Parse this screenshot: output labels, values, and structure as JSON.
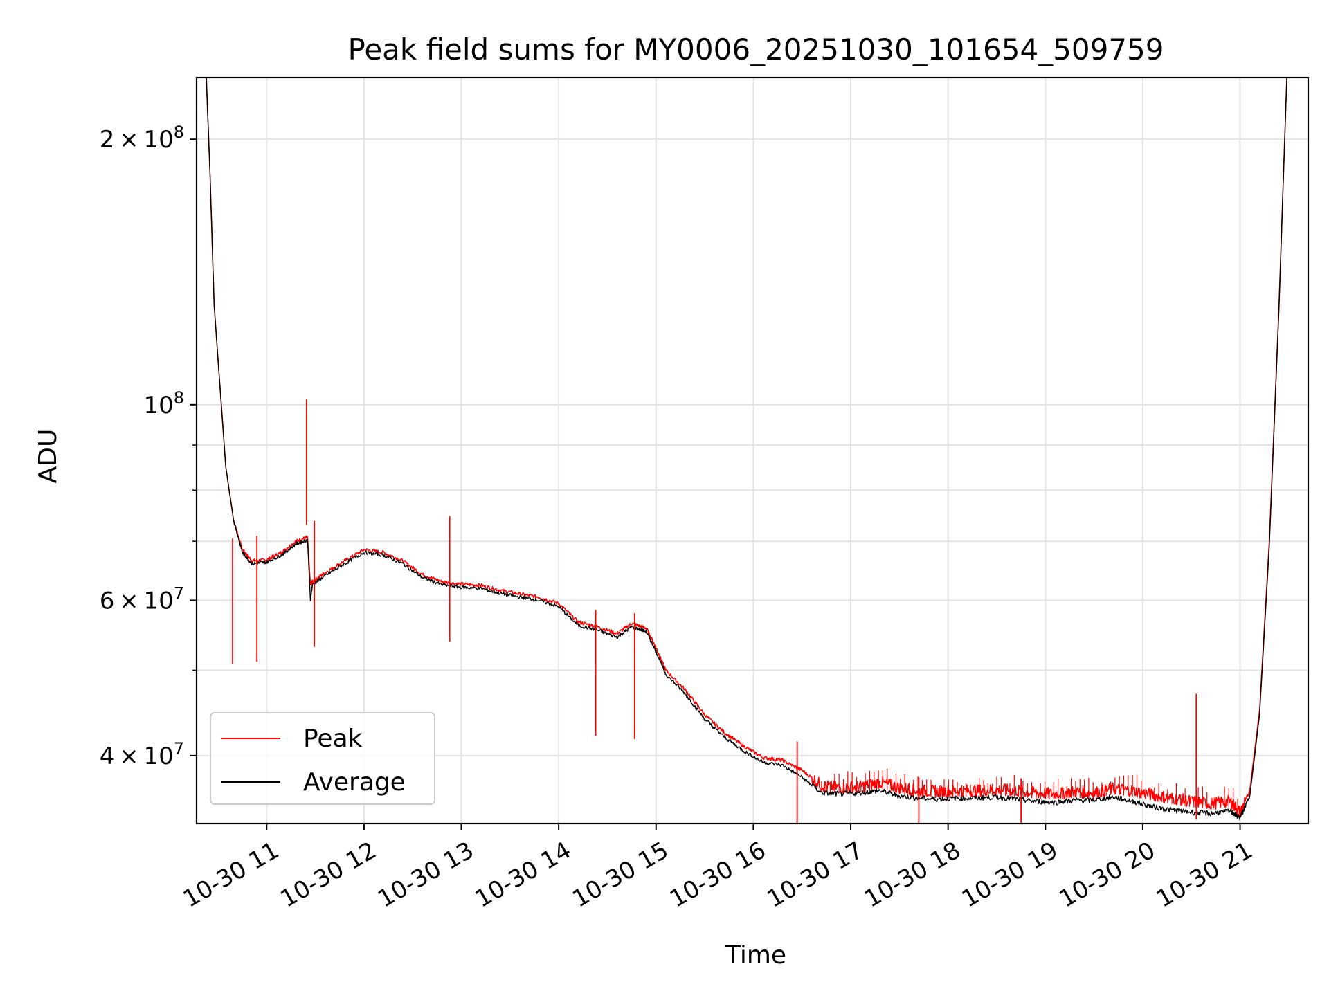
{
  "chart_data": {
    "type": "line",
    "title": "Peak field sums for MY0006_20251030_101654_509759",
    "xlabel": "Time",
    "ylabel": "ADU",
    "yscale": "log",
    "xlim": [
      10.28,
      21.7
    ],
    "ylim": [
      33500000,
      235000000
    ],
    "grid": true,
    "legend_position": "lower-left",
    "x_ticks": [
      {
        "value": 11,
        "label": "10-30 11"
      },
      {
        "value": 12,
        "label": "10-30 12"
      },
      {
        "value": 13,
        "label": "10-30 13"
      },
      {
        "value": 14,
        "label": "10-30 14"
      },
      {
        "value": 15,
        "label": "10-30 15"
      },
      {
        "value": 16,
        "label": "10-30 16"
      },
      {
        "value": 17,
        "label": "10-30 17"
      },
      {
        "value": 18,
        "label": "10-30 18"
      },
      {
        "value": 19,
        "label": "10-30 19"
      },
      {
        "value": 20,
        "label": "10-30 20"
      },
      {
        "value": 21,
        "label": "10-30 21"
      }
    ],
    "y_ticks": [
      {
        "value": 40000000,
        "mant": "4",
        "exp": "7"
      },
      {
        "value": 60000000,
        "mant": "6",
        "exp": "7"
      },
      {
        "value": 100000000,
        "mant": "",
        "exp": "8"
      },
      {
        "value": 200000000,
        "mant": "2",
        "exp": "8"
      }
    ],
    "y_minor": [
      50000000,
      70000000,
      80000000,
      90000000,
      300000000
    ],
    "series": [
      {
        "name": "Peak",
        "color": "#ff0000",
        "x": [
          10.38,
          10.42,
          10.46,
          10.52,
          10.58,
          10.66,
          10.75,
          10.85,
          11.0,
          11.15,
          11.3,
          11.42,
          11.45,
          11.47,
          11.6,
          11.8,
          12.0,
          12.2,
          12.4,
          12.6,
          12.8,
          13.0,
          13.2,
          13.4,
          13.6,
          13.8,
          14.0,
          14.2,
          14.4,
          14.6,
          14.75,
          14.9,
          15.0,
          15.1,
          15.3,
          15.5,
          15.7,
          15.9,
          16.1,
          16.3,
          16.5,
          16.7,
          16.9,
          17.1,
          17.3,
          17.5,
          17.7,
          17.9,
          18.1,
          18.3,
          18.5,
          18.7,
          18.9,
          19.1,
          19.3,
          19.5,
          19.7,
          19.9,
          20.1,
          20.3,
          20.5,
          20.7,
          20.9,
          21.0,
          21.1,
          21.2,
          21.3,
          21.4,
          21.48
        ],
        "y": [
          235000000,
          180000000,
          130000000,
          105000000,
          85000000,
          74000000,
          68500000,
          66500000,
          66700000,
          68000000,
          70000000,
          70800000,
          62500000,
          63000000,
          64500000,
          66500000,
          68500000,
          68000000,
          66500000,
          64200000,
          63000000,
          62600000,
          62400000,
          61600000,
          61000000,
          60500000,
          59500000,
          56700000,
          56000000,
          55000000,
          56500000,
          55800000,
          53000000,
          50000000,
          47500000,
          44500000,
          42500000,
          41000000,
          39800000,
          39500000,
          38500000,
          37000000,
          36800000,
          36900000,
          37300000,
          36800000,
          36500000,
          36400000,
          36500000,
          36500000,
          36600000,
          36500000,
          36300000,
          36200000,
          36400000,
          36300000,
          36700000,
          36500000,
          36100000,
          35800000,
          35500000,
          35300000,
          35500000,
          34500000,
          36500000,
          45000000,
          70000000,
          130000000,
          235000000
        ]
      },
      {
        "name": "Average",
        "color": "#000000",
        "x": [
          10.38,
          10.42,
          10.46,
          10.52,
          10.58,
          10.66,
          10.75,
          10.85,
          11.0,
          11.15,
          11.3,
          11.42,
          11.45,
          11.47,
          11.6,
          11.8,
          12.0,
          12.2,
          12.4,
          12.6,
          12.8,
          13.0,
          13.2,
          13.4,
          13.6,
          13.8,
          14.0,
          14.2,
          14.4,
          14.6,
          14.75,
          14.9,
          15.0,
          15.1,
          15.3,
          15.5,
          15.7,
          15.9,
          16.1,
          16.3,
          16.5,
          16.7,
          16.9,
          17.1,
          17.3,
          17.5,
          17.7,
          17.9,
          18.1,
          18.3,
          18.5,
          18.7,
          18.9,
          19.1,
          19.3,
          19.5,
          19.7,
          19.9,
          20.1,
          20.3,
          20.5,
          20.7,
          20.9,
          21.0,
          21.1,
          21.2,
          21.3,
          21.4,
          21.48
        ],
        "y": [
          235000000,
          180000000,
          130000000,
          105000000,
          85000000,
          74000000,
          68000000,
          66000000,
          66300000,
          67500000,
          69500000,
          70300000,
          60000000,
          62500000,
          64000000,
          66000000,
          68000000,
          67500000,
          66000000,
          63700000,
          62500000,
          62100000,
          61900000,
          61100000,
          60500000,
          60000000,
          59000000,
          56200000,
          55500000,
          54500000,
          56000000,
          55300000,
          52500000,
          49500000,
          47000000,
          44000000,
          42000000,
          40500000,
          39300000,
          39000000,
          37800000,
          36300000,
          36200000,
          36300000,
          36500000,
          36000000,
          35800000,
          35700000,
          35800000,
          35800000,
          35900000,
          35700000,
          35500000,
          35400000,
          35600000,
          35600000,
          35900000,
          35500000,
          35000000,
          34700000,
          34500000,
          34400000,
          34600000,
          34000000,
          36000000,
          44500000,
          69000000,
          129000000,
          235000000
        ]
      }
    ],
    "spikes": [
      {
        "x": 10.65,
        "y": 70500000
      },
      {
        "x": 10.9,
        "y": 71000000
      },
      {
        "x": 11.41,
        "y": 101500000
      },
      {
        "x": 11.49,
        "y": 73800000
      },
      {
        "x": 12.88,
        "y": 74800000
      },
      {
        "x": 14.38,
        "y": 58500000
      },
      {
        "x": 14.78,
        "y": 58000000
      },
      {
        "x": 16.45,
        "y": 41500000
      },
      {
        "x": 17.7,
        "y": 37800000
      },
      {
        "x": 18.75,
        "y": 37700000
      },
      {
        "x": 20.55,
        "y": 47000000
      }
    ]
  }
}
